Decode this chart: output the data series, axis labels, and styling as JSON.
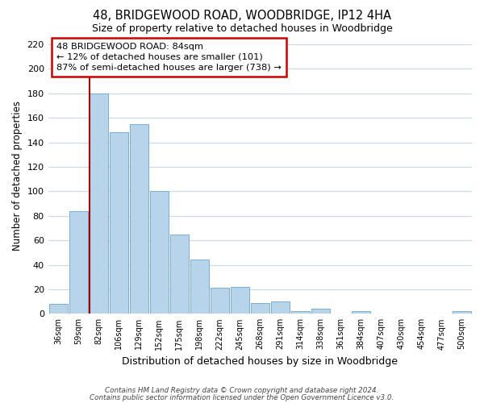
{
  "title": "48, BRIDGEWOOD ROAD, WOODBRIDGE, IP12 4HA",
  "subtitle": "Size of property relative to detached houses in Woodbridge",
  "xlabel": "Distribution of detached houses by size in Woodbridge",
  "ylabel": "Number of detached properties",
  "bar_color": "#b8d4ea",
  "bar_edge_color": "#7aaed0",
  "marker_line_color": "#aa0000",
  "categories": [
    "36sqm",
    "59sqm",
    "82sqm",
    "106sqm",
    "129sqm",
    "152sqm",
    "175sqm",
    "198sqm",
    "222sqm",
    "245sqm",
    "268sqm",
    "291sqm",
    "314sqm",
    "338sqm",
    "361sqm",
    "384sqm",
    "407sqm",
    "430sqm",
    "454sqm",
    "477sqm",
    "500sqm"
  ],
  "values": [
    8,
    84,
    180,
    148,
    155,
    100,
    65,
    44,
    21,
    22,
    9,
    10,
    2,
    4,
    0,
    2,
    0,
    0,
    0,
    0,
    2
  ],
  "marker_bin_index": 2,
  "annotation_line1": "48 BRIDGEWOOD ROAD: 84sqm",
  "annotation_line2": "← 12% of detached houses are smaller (101)",
  "annotation_line3": "87% of semi-detached houses are larger (738) →",
  "ylim": [
    0,
    225
  ],
  "yticks": [
    0,
    20,
    40,
    60,
    80,
    100,
    120,
    140,
    160,
    180,
    200,
    220
  ],
  "background_color": "#ffffff",
  "grid_color": "#c8daea",
  "footer_line1": "Contains HM Land Registry data © Crown copyright and database right 2024.",
  "footer_line2": "Contains public sector information licensed under the Open Government Licence v3.0."
}
